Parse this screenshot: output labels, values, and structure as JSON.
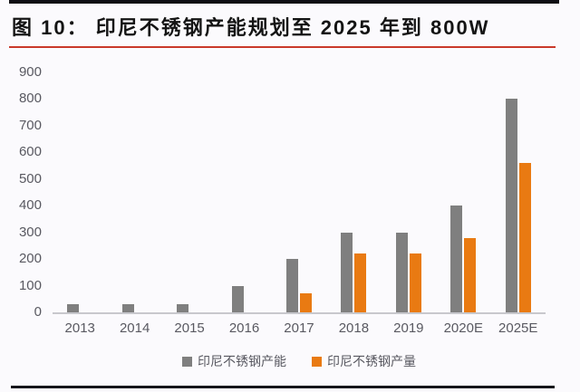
{
  "page": {
    "title": "图 10：  印尼不锈钢产能规划至 2025 年到 800W"
  },
  "chart_data": {
    "type": "bar",
    "title": "印尼不锈钢产能规划至 2025 年到 800W",
    "categories": [
      "2013",
      "2014",
      "2015",
      "2016",
      "2017",
      "2018",
      "2019",
      "2020E",
      "2025E"
    ],
    "series": [
      {
        "name": "印尼不锈钢产能",
        "color": "#7f7f7f",
        "values": [
          30,
          30,
          30,
          100,
          200,
          300,
          300,
          400,
          800
        ]
      },
      {
        "name": "印尼不锈钢产量",
        "color": "#e97a12",
        "values": [
          0,
          0,
          0,
          0,
          70,
          220,
          220,
          280,
          560
        ]
      }
    ],
    "xlabel": "",
    "ylabel": "",
    "ylim": [
      0,
      900
    ],
    "yticks": [
      0,
      100,
      200,
      300,
      400,
      500,
      600,
      700,
      800,
      900
    ],
    "grid": false,
    "legend_position": "bottom"
  },
  "colors": {
    "accent_rule_red": "#c9392b",
    "top_bottom_rule_black": "#0e0e14",
    "axis_text": "#595961",
    "axis_line": "#c8c8cd",
    "background": "#fbfafd"
  }
}
